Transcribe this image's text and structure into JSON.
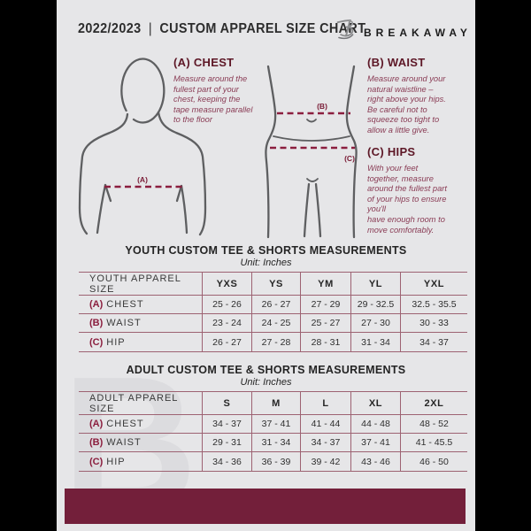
{
  "header": {
    "year_range": "2022/2023",
    "separator": "|",
    "title": "CUSTOM APPAREL SIZE CHART",
    "brand": "BREAKAWAY"
  },
  "diagram": {
    "chest": {
      "heading": "(A) CHEST",
      "marker": "(A)",
      "description": "Measure around the\nfullest part of your\nchest, keeping the\ntape measure parallel\nto the floor"
    },
    "waist": {
      "heading": "(B) WAIST",
      "marker": "(B)",
      "description": "Measure around your\nnatural waistline –\nright above your hips.\nBe careful not to\nsqueeze too tight to\nallow a little give."
    },
    "hips": {
      "heading": "(C) HIPS",
      "marker": "(C)",
      "description": "With your feet\ntogether, measure\naround the fullest part\nof your hips to ensure\nyou'll\nhave enough room to\nmove comfortably."
    }
  },
  "youth_table": {
    "title": "YOUTH CUSTOM TEE & SHORTS MEASUREMENTS",
    "unit": "Unit: Inches",
    "label_header": "YOUTH APPAREL SIZE",
    "sizes": [
      "YXS",
      "YS",
      "YM",
      "YL",
      "YXL"
    ],
    "rows": [
      {
        "prefix": "(A)",
        "label": "CHEST",
        "values": [
          "25 - 26",
          "26 - 27",
          "27 - 29",
          "29 - 32.5",
          "32.5 - 35.5"
        ]
      },
      {
        "prefix": "(B)",
        "label": "WAIST",
        "values": [
          "23 - 24",
          "24 - 25",
          "25 - 27",
          "27 - 30",
          "30 - 33"
        ]
      },
      {
        "prefix": "(C)",
        "label": "HIP",
        "values": [
          "26 - 27",
          "27 - 28",
          "28 - 31",
          "31 - 34",
          "34 - 37"
        ]
      }
    ]
  },
  "adult_table": {
    "title": "ADULT CUSTOM TEE & SHORTS MEASUREMENTS",
    "unit": "Unit: Inches",
    "label_header": "ADULT APPAREL SIZE",
    "sizes": [
      "S",
      "M",
      "L",
      "XL",
      "2XL"
    ],
    "rows": [
      {
        "prefix": "(A)",
        "label": "CHEST",
        "values": [
          "34 - 37",
          "37 - 41",
          "41 - 44",
          "44 - 48",
          "48 - 52"
        ]
      },
      {
        "prefix": "(B)",
        "label": "WAIST",
        "values": [
          "29 - 31",
          "31 - 34",
          "34 - 37",
          "37 - 41",
          "41 - 45.5"
        ]
      },
      {
        "prefix": "(C)",
        "label": "HIP",
        "values": [
          "34 - 36",
          "36 - 39",
          "39 - 42",
          "43 - 46",
          "46 - 50"
        ]
      }
    ]
  },
  "watermark": "B",
  "colors": {
    "accent_maroon": "#8b1e3e",
    "dark_maroon_heading": "#5d1726",
    "bar_maroon": "#731f3a",
    "table_line": "#9d6272",
    "background": "#e6e6e8",
    "figure_gray": "#5e5f61"
  }
}
